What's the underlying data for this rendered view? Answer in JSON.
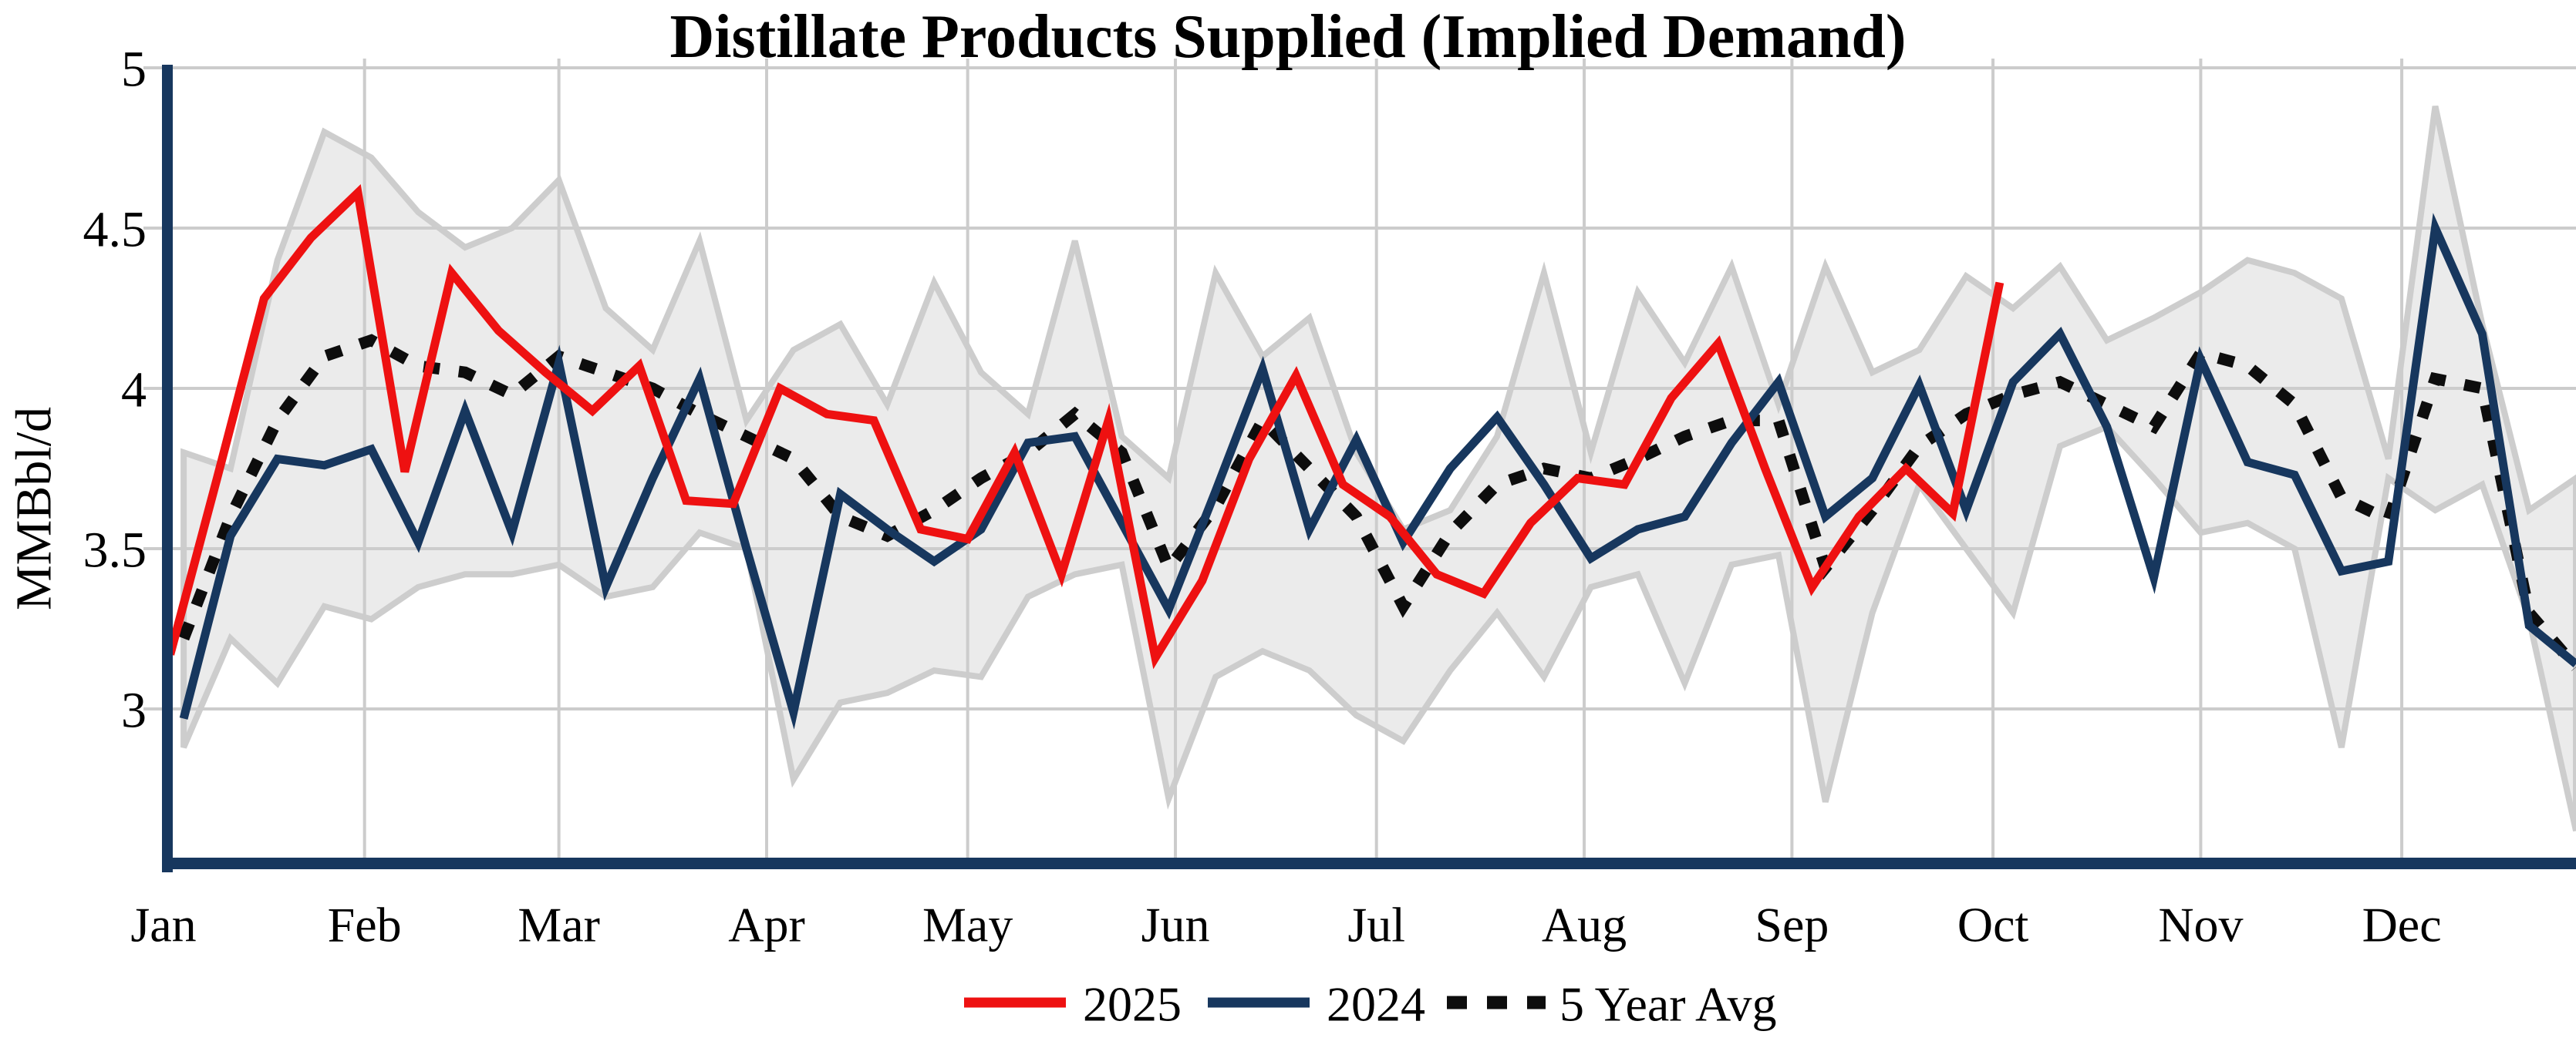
{
  "title": "Distillate Products Supplied (Implied Demand)",
  "y_axis": {
    "label": "MMBbl/d",
    "ticks": [
      {
        "value": 5,
        "label": "5"
      },
      {
        "value": 4.5,
        "label": "4.5"
      },
      {
        "value": 4,
        "label": "4"
      },
      {
        "value": 3.5,
        "label": "3.5"
      },
      {
        "value": 3,
        "label": "3"
      }
    ],
    "min": 2.5,
    "max": 5.07
  },
  "x_axis": {
    "month_labels": [
      "Jan",
      "Feb",
      "Mar",
      "Apr",
      "May",
      "Jun",
      "Jul",
      "Aug",
      "Sep",
      "Oct",
      "Nov",
      "Dec"
    ],
    "month_start_doys": [
      2,
      32,
      61,
      92,
      122,
      153,
      183,
      214,
      245,
      275,
      306,
      336
    ]
  },
  "legend": {
    "items": [
      {
        "label": "2025",
        "color": "#EE1111",
        "style": "solid"
      },
      {
        "label": "2024",
        "color": "#17375E",
        "style": "solid"
      },
      {
        "label": "5 Year Avg",
        "color": "#0D0D0D",
        "style": "dotted"
      }
    ]
  },
  "colors": {
    "axis": "#17375E",
    "gridline": "#CCCCCC",
    "band_fill": "#EBEBEB",
    "band_edge": "#CDCDCD",
    "series_2025": "#EE1111",
    "series_2024": "#17375E",
    "series_avg": "#0D0D0D",
    "background": "#FFFFFF",
    "text": "#000000"
  },
  "chart_data": {
    "type": "line",
    "title": "Distillate Products Supplied (Implied Demand)",
    "xlabel": "",
    "ylabel": "MMBbl/d",
    "ylim": [
      2.5,
      5.07
    ],
    "grid": true,
    "legend_position": "bottom",
    "x_unit": "weekly points, positioned by day-of-year (Jan 1 = doy 1)",
    "series": [
      {
        "name": "2025",
        "color": "#EE1111",
        "style": "solid",
        "width": 11,
        "start_doy": 3,
        "step_days": 7,
        "values": [
          3.17,
          3.72,
          4.28,
          4.47,
          4.61,
          3.74,
          4.36,
          4.18,
          4.05,
          3.93,
          4.07,
          3.65,
          3.64,
          4.0,
          3.92,
          3.9,
          3.56,
          3.53,
          3.8,
          3.42,
          3.9,
          3.16,
          3.4,
          3.78,
          4.04,
          3.7,
          3.6,
          3.42,
          3.36,
          3.58,
          3.72,
          3.7,
          3.97,
          4.14,
          3.75,
          3.38,
          3.6,
          3.75,
          3.61,
          4.33
        ]
      },
      {
        "name": "2024",
        "color": "#17375E",
        "style": "solid",
        "width": 11,
        "start_doy": 5,
        "step_days": 7,
        "values": [
          2.97,
          3.54,
          3.78,
          3.76,
          3.81,
          3.52,
          3.93,
          3.55,
          4.08,
          3.38,
          3.72,
          4.03,
          3.5,
          2.99,
          3.67,
          3.56,
          3.46,
          3.56,
          3.83,
          3.85,
          3.58,
          3.31,
          3.68,
          4.06,
          3.56,
          3.84,
          3.52,
          3.75,
          3.91,
          3.7,
          3.47,
          3.56,
          3.6,
          3.83,
          4.02,
          3.6,
          3.72,
          4.01,
          3.62,
          4.02,
          4.17,
          3.88,
          3.41,
          4.09,
          3.77,
          3.73,
          3.43,
          3.46,
          4.5,
          4.17,
          3.26,
          3.14
        ]
      },
      {
        "name": "5 Year Avg",
        "color": "#0D0D0D",
        "style": "dotted",
        "width": 15,
        "start_doy": 5,
        "step_days": 7,
        "values": [
          3.22,
          3.6,
          3.9,
          4.1,
          4.15,
          4.07,
          4.05,
          3.98,
          4.1,
          4.05,
          4.0,
          3.92,
          3.85,
          3.78,
          3.6,
          3.54,
          3.62,
          3.72,
          3.8,
          3.92,
          3.8,
          3.44,
          3.63,
          3.9,
          3.75,
          3.6,
          3.32,
          3.55,
          3.7,
          3.75,
          3.72,
          3.78,
          3.85,
          3.9,
          3.9,
          3.44,
          3.62,
          3.82,
          3.92,
          3.98,
          4.02,
          3.95,
          3.88,
          4.11,
          4.07,
          3.95,
          3.66,
          3.59,
          4.03,
          4.0,
          3.3,
          3.13
        ]
      }
    ],
    "range_band": {
      "name": "5-year range",
      "start_doy": 5,
      "step_days": 7,
      "upper": [
        3.8,
        3.75,
        4.4,
        4.8,
        4.72,
        4.55,
        4.44,
        4.5,
        4.65,
        4.25,
        4.12,
        4.46,
        3.9,
        4.12,
        4.2,
        3.95,
        4.33,
        4.05,
        3.92,
        4.46,
        3.85,
        3.72,
        4.36,
        4.1,
        4.22,
        3.8,
        3.56,
        3.62,
        3.85,
        4.36,
        3.8,
        4.3,
        4.08,
        4.38,
        3.95,
        4.38,
        4.05,
        4.12,
        4.35,
        4.25,
        4.38,
        4.15,
        4.22,
        4.3,
        4.4,
        4.36,
        4.28,
        3.78,
        4.88,
        4.2,
        3.62,
        3.72
      ],
      "lower": [
        2.88,
        3.22,
        3.08,
        3.32,
        3.28,
        3.38,
        3.42,
        3.42,
        3.45,
        3.35,
        3.38,
        3.55,
        3.5,
        2.78,
        3.02,
        3.05,
        3.12,
        3.1,
        3.35,
        3.42,
        3.45,
        2.72,
        3.1,
        3.18,
        3.12,
        2.98,
        2.9,
        3.12,
        3.3,
        3.1,
        3.38,
        3.42,
        3.08,
        3.45,
        3.48,
        2.71,
        3.3,
        3.7,
        3.5,
        3.3,
        3.82,
        3.88,
        3.72,
        3.55,
        3.58,
        3.5,
        2.88,
        3.72,
        3.62,
        3.7,
        3.28,
        2.62
      ]
    }
  }
}
